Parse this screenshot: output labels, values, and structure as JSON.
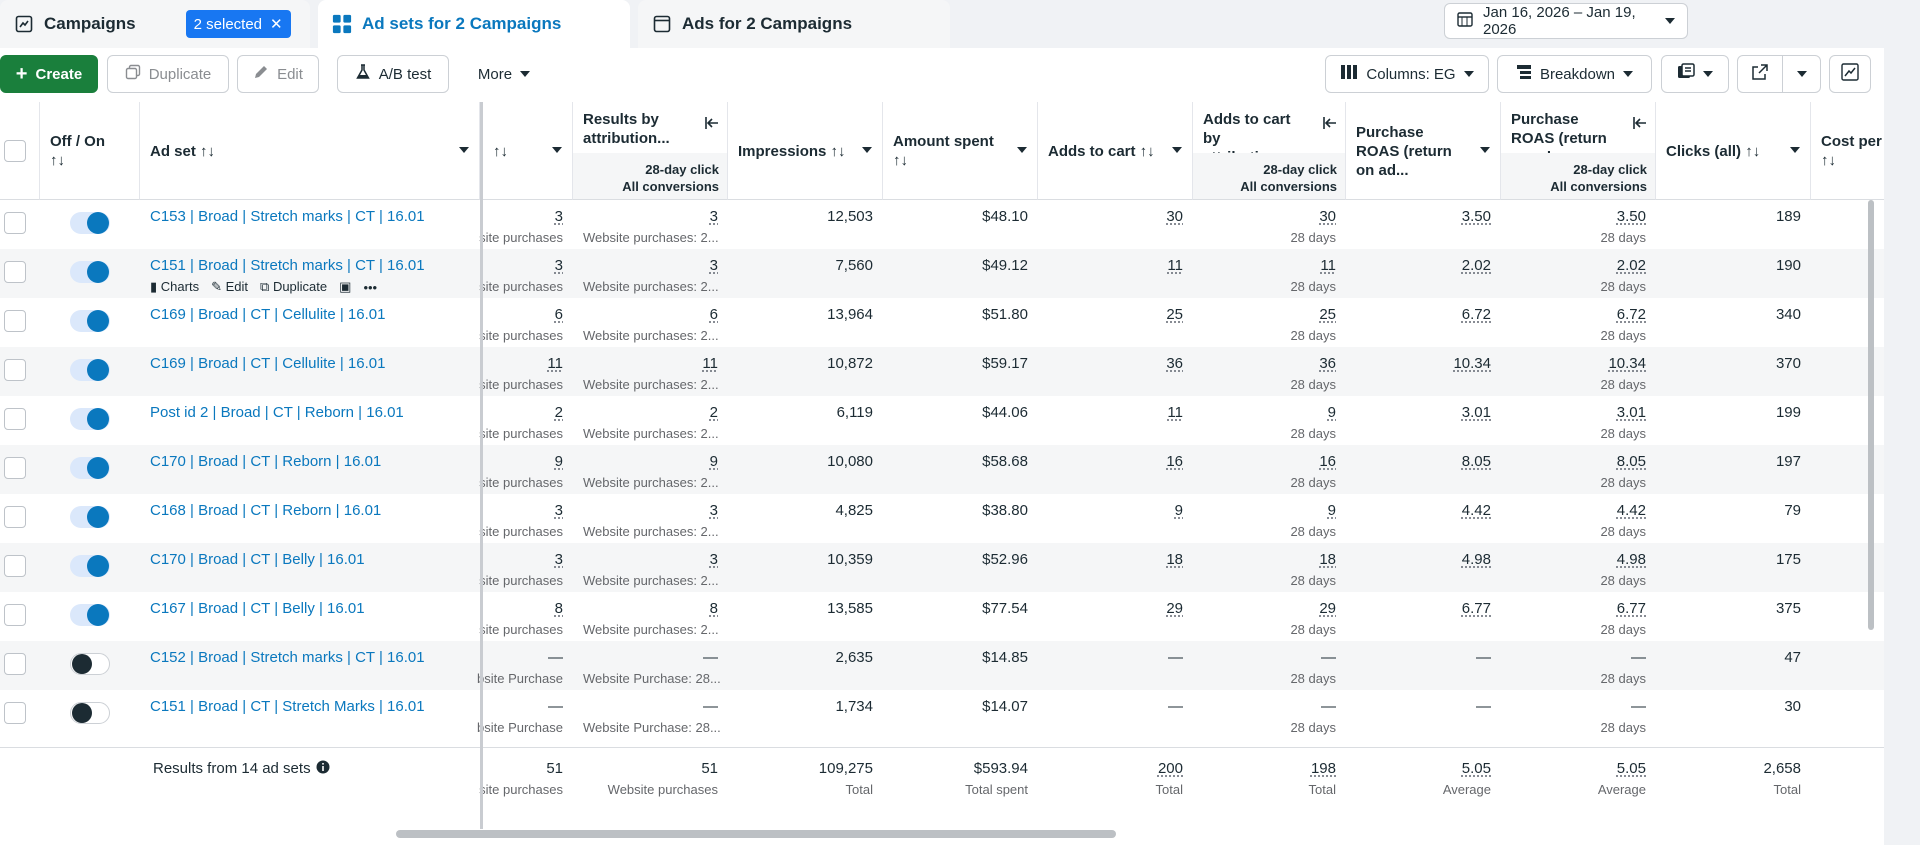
{
  "tabs": {
    "campaigns": "Campaigns",
    "selected": "2 selected",
    "adsets": "Ad sets for 2 Campaigns",
    "ads": "Ads for 2 Campaigns"
  },
  "date_range": "Jan 16, 2026 – Jan 19, 2026",
  "toolbar": {
    "create": "Create",
    "duplicate": "Duplicate",
    "edit": "Edit",
    "ab_test": "A/B test",
    "more": "More",
    "columns": "Columns: EG",
    "breakdown": "Breakdown"
  },
  "headers": {
    "off_on": "Off / On",
    "off_on_sort": "↑↓",
    "ad_set": "Ad set ↑↓",
    "results_sort": "↑↓",
    "results_by_attr": "Results by attribution...",
    "results_sub1": "28-day click",
    "results_sub2": "All conversions",
    "impressions": "Impressions ↑↓",
    "amount_spent": "Amount spent",
    "amount_sort": "↑↓",
    "adds_to_cart": "Adds to cart ↑↓",
    "adds_by_attr": "Adds to cart by attribution...",
    "adds_sub1": "28-day click",
    "adds_sub2": "All conversions",
    "purchase_roas": "Purchase ROAS (return on ad...",
    "purchase_roas_attr": "Purchase ROAS (return on ad...",
    "roas_sub1": "28-day click",
    "roas_sub2": "All conversions",
    "clicks": "Clicks (all) ↑↓",
    "cost_per": "Cost per",
    "cost_per_sort": "↑↓"
  },
  "row_actions": {
    "charts": "Charts",
    "edit": "Edit",
    "duplicate": "Duplicate"
  },
  "rows": [
    {
      "name": "C153 | Broad | Stretch marks | CT | 16.01",
      "on": true,
      "results": "3",
      "results_sub": "site purchases",
      "attr": "3",
      "attr_sub": "Website purchases: 2...",
      "impressions": "12,503",
      "spent": "$48.10",
      "atc": "30",
      "atc_attr": "30",
      "atc_attr_sub": "28 days",
      "roas": "3.50",
      "roas_attr": "3.50",
      "roas_attr_sub": "28 days",
      "clicks": "189"
    },
    {
      "name": "C151 | Broad | Stretch marks | CT | 16.01",
      "on": true,
      "results": "3",
      "results_sub": "site purchases",
      "attr": "3",
      "attr_sub": "Website purchases: 2...",
      "impressions": "7,560",
      "spent": "$49.12",
      "atc": "11",
      "atc_attr": "11",
      "atc_attr_sub": "28 days",
      "roas": "2.02",
      "roas_attr": "2.02",
      "roas_attr_sub": "28 days",
      "clicks": "190"
    },
    {
      "name": "C169 | Broad | CT | Cellulite | 16.01",
      "on": true,
      "results": "6",
      "results_sub": "site purchases",
      "attr": "6",
      "attr_sub": "Website purchases: 2...",
      "impressions": "13,964",
      "spent": "$51.80",
      "atc": "25",
      "atc_attr": "25",
      "atc_attr_sub": "28 days",
      "roas": "6.72",
      "roas_attr": "6.72",
      "roas_attr_sub": "28 days",
      "clicks": "340"
    },
    {
      "name": "C169 | Broad | CT | Cellulite | 16.01",
      "on": true,
      "results": "11",
      "results_sub": "site purchases",
      "attr": "11",
      "attr_sub": "Website purchases: 2...",
      "impressions": "10,872",
      "spent": "$59.17",
      "atc": "36",
      "atc_attr": "36",
      "atc_attr_sub": "28 days",
      "roas": "10.34",
      "roas_attr": "10.34",
      "roas_attr_sub": "28 days",
      "clicks": "370"
    },
    {
      "name": "Post id 2 | Broad | CT | Reborn | 16.01",
      "on": true,
      "results": "2",
      "results_sub": "site purchases",
      "attr": "2",
      "attr_sub": "Website purchases: 2...",
      "impressions": "6,119",
      "spent": "$44.06",
      "atc": "11",
      "atc_attr": "9",
      "atc_attr_sub": "28 days",
      "roas": "3.01",
      "roas_attr": "3.01",
      "roas_attr_sub": "28 days",
      "clicks": "199"
    },
    {
      "name": "C170 | Broad | CT | Reborn | 16.01",
      "on": true,
      "results": "9",
      "results_sub": "site purchases",
      "attr": "9",
      "attr_sub": "Website purchases: 2...",
      "impressions": "10,080",
      "spent": "$58.68",
      "atc": "16",
      "atc_attr": "16",
      "atc_attr_sub": "28 days",
      "roas": "8.05",
      "roas_attr": "8.05",
      "roas_attr_sub": "28 days",
      "clicks": "197"
    },
    {
      "name": "C168 | Broad | CT | Reborn | 16.01",
      "on": true,
      "results": "3",
      "results_sub": "site purchases",
      "attr": "3",
      "attr_sub": "Website purchases: 2...",
      "impressions": "4,825",
      "spent": "$38.80",
      "atc": "9",
      "atc_attr": "9",
      "atc_attr_sub": "28 days",
      "roas": "4.42",
      "roas_attr": "4.42",
      "roas_attr_sub": "28 days",
      "clicks": "79"
    },
    {
      "name": "C170 | Broad | CT | Belly | 16.01",
      "on": true,
      "results": "3",
      "results_sub": "site purchases",
      "attr": "3",
      "attr_sub": "Website purchases: 2...",
      "impressions": "10,359",
      "spent": "$52.96",
      "atc": "18",
      "atc_attr": "18",
      "atc_attr_sub": "28 days",
      "roas": "4.98",
      "roas_attr": "4.98",
      "roas_attr_sub": "28 days",
      "clicks": "175"
    },
    {
      "name": "C167 | Broad | CT | Belly | 16.01",
      "on": true,
      "results": "8",
      "results_sub": "site purchases",
      "attr": "8",
      "attr_sub": "Website purchases: 2...",
      "impressions": "13,585",
      "spent": "$77.54",
      "atc": "29",
      "atc_attr": "29",
      "atc_attr_sub": "28 days",
      "roas": "6.77",
      "roas_attr": "6.77",
      "roas_attr_sub": "28 days",
      "clicks": "375"
    },
    {
      "name": "C152 | Broad | Stretch marks | CT | 16.01",
      "on": false,
      "results": "—",
      "results_sub": "bsite Purchase",
      "attr": "—",
      "attr_sub": "Website Purchase: 28...",
      "impressions": "2,635",
      "spent": "$14.85",
      "atc": "—",
      "atc_attr": "—",
      "atc_attr_sub": "28 days",
      "roas": "—",
      "roas_attr": "—",
      "roas_attr_sub": "28 days",
      "clicks": "47"
    },
    {
      "name": "C151 | Broad | CT | Stretch Marks | 16.01",
      "on": false,
      "results": "—",
      "results_sub": "bsite Purchase",
      "attr": "—",
      "attr_sub": "Website Purchase: 28...",
      "impressions": "1,734",
      "spent": "$14.07",
      "atc": "—",
      "atc_attr": "—",
      "atc_attr_sub": "28 days",
      "roas": "—",
      "roas_attr": "—",
      "roas_attr_sub": "28 days",
      "clicks": "30"
    }
  ],
  "totals": {
    "label": "Results from 14 ad sets",
    "results": "51",
    "results_sub": "site purchases",
    "attr": "51",
    "attr_sub": "Website purchases",
    "impressions": "109,275",
    "impressions_sub": "Total",
    "spent": "$593.94",
    "spent_sub": "Total spent",
    "atc": "200",
    "atc_sub": "Total",
    "atc_attr": "198",
    "atc_attr_sub": "Total",
    "roas": "5.05",
    "roas_sub": "Average",
    "roas_attr": "5.05",
    "roas_attr_sub": "Average",
    "clicks": "2,658",
    "clicks_sub": "Total"
  }
}
